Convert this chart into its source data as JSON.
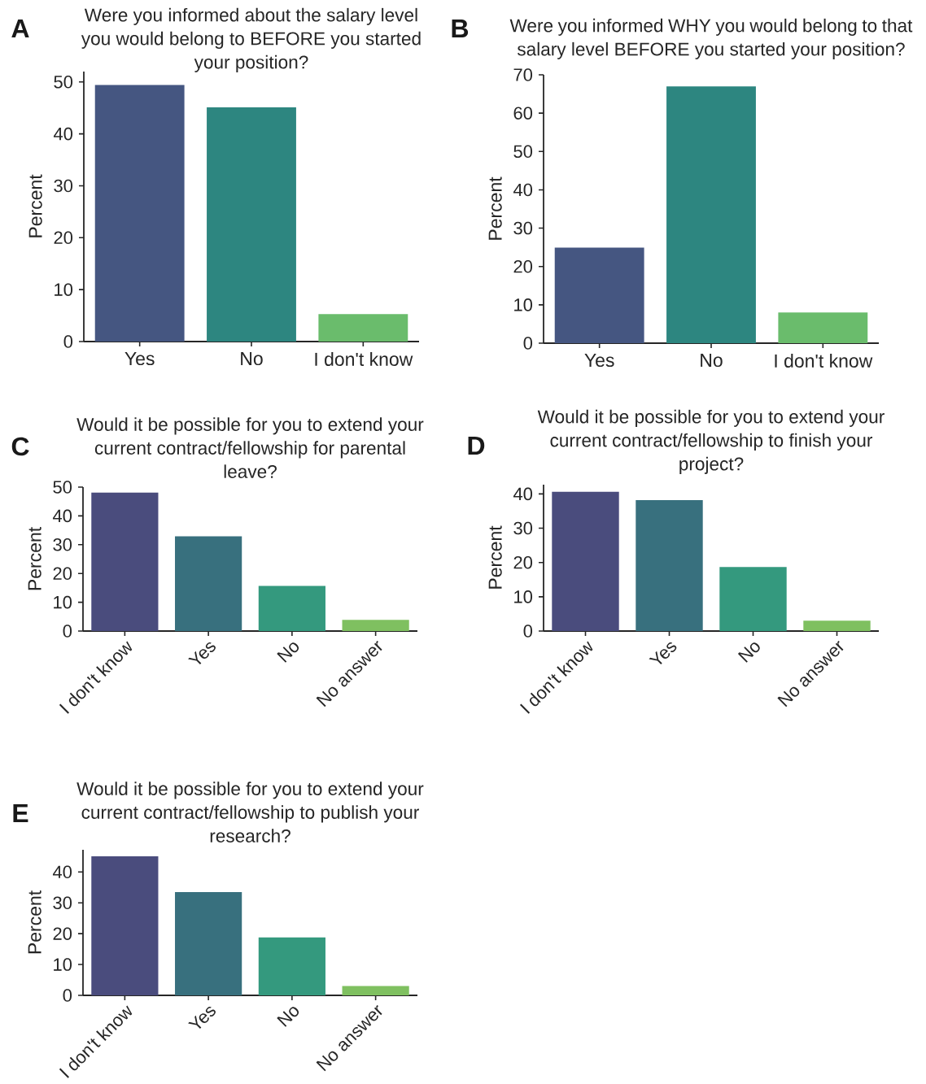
{
  "chart_data": [
    {
      "type": "bar",
      "title": "Were you informed about the salary level you would belong to BEFORE you started your position?",
      "ylabel": "Percent",
      "categories": [
        "Yes",
        "No",
        "I don't know"
      ],
      "values": [
        49.4,
        45.1,
        5.3
      ],
      "colors": [
        "#455681",
        "#2d8680",
        "#6abc6c"
      ],
      "ylim": [
        0,
        52
      ],
      "yticks": [
        0,
        10,
        20,
        30,
        40,
        50
      ],
      "annotations": [
        "A"
      ]
    },
    {
      "type": "bar",
      "title": "Were you informed WHY you would belong to that salary level BEFORE you started your position?",
      "ylabel": "Percent",
      "categories": [
        "Yes",
        "No",
        "I don't know"
      ],
      "values": [
        24.9,
        67.0,
        8.0
      ],
      "colors": [
        "#455681",
        "#2d8680",
        "#6abc6c"
      ],
      "ylim": [
        0,
        70
      ],
      "yticks": [
        0,
        10,
        20,
        30,
        40,
        50,
        60,
        70
      ],
      "annotations": [
        "B"
      ]
    },
    {
      "type": "bar",
      "title": "Would it be possible for you to extend your current contract/fellowship for parental leave?",
      "ylabel": "Percent",
      "categories": [
        "I don't know",
        "Yes",
        "No",
        "No answer"
      ],
      "values": [
        48.1,
        32.9,
        15.7,
        3.9
      ],
      "colors": [
        "#4a4c7d",
        "#38707e",
        "#34997e",
        "#7fc060"
      ],
      "ylim": [
        0,
        50
      ],
      "yticks": [
        0,
        10,
        20,
        30,
        40,
        50
      ],
      "annotations": [
        "C"
      ]
    },
    {
      "type": "bar",
      "title": "Would it be possible for you to extend your current contract/fellowship to finish your project?",
      "ylabel": "Percent",
      "categories": [
        "I don't know",
        "Yes",
        "No",
        "No answer"
      ],
      "values": [
        40.6,
        38.2,
        18.7,
        3.0
      ],
      "colors": [
        "#4a4c7d",
        "#38707e",
        "#34997e",
        "#7fc060"
      ],
      "ylim": [
        0,
        42.7
      ],
      "yticks": [
        0,
        10,
        20,
        30,
        40
      ],
      "annotations": [
        "D"
      ]
    },
    {
      "type": "bar",
      "title": "Would it be possible for you to extend your current contract/fellowship to publish your research?",
      "ylabel": "Percent",
      "categories": [
        "I don't know",
        "Yes",
        "No",
        "No answer"
      ],
      "values": [
        45.1,
        33.5,
        18.8,
        3.0
      ],
      "colors": [
        "#4a4c7d",
        "#38707e",
        "#34997e",
        "#7fc060"
      ],
      "ylim": [
        0,
        47.2
      ],
      "yticks": [
        0,
        10,
        20,
        30,
        40
      ],
      "annotations": [
        "E"
      ]
    }
  ]
}
